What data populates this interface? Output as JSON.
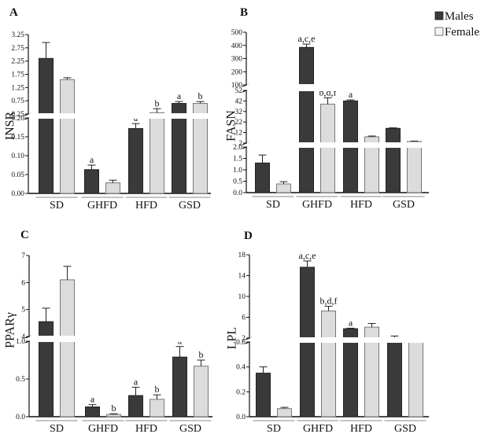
{
  "legend": {
    "items": [
      {
        "label": "Males",
        "color": "#3a3a3a"
      },
      {
        "label": "Females",
        "color": "#dcdcdc"
      }
    ],
    "placement": "top-right"
  },
  "colors": {
    "males": "#3a3a3a",
    "females": "#dcdcdc",
    "axis": "#111111",
    "group_line": "#888888"
  },
  "chart_data": [
    {
      "panel": "A",
      "type": "bar",
      "ylabel": "INSR",
      "categories": [
        "SD",
        "GHFD",
        "HFD",
        "GSD"
      ],
      "axis_segments": [
        {
          "range": [
            0,
            0.2
          ],
          "ticks": [
            "0.00",
            "0.05",
            "0.10",
            "0.15",
            "0.20"
          ]
        },
        {
          "range": [
            0.25,
            3.25
          ],
          "ticks": [
            "0.25",
            "0.75",
            "1.25",
            "1.75",
            "2.25",
            "2.75",
            "3.25"
          ]
        }
      ],
      "series": [
        {
          "name": "Males",
          "values": [
            2.35,
            0.063,
            0.172,
            0.65
          ],
          "errors": [
            2.95,
            0.075,
            0.185,
            0.72
          ],
          "labels": [
            "",
            "a",
            "a",
            "a"
          ]
        },
        {
          "name": "Females",
          "values": [
            1.55,
            0.028,
            0.3,
            0.65
          ],
          "errors": [
            1.62,
            0.035,
            0.45,
            0.72
          ],
          "labels": [
            "",
            "",
            "b",
            "b"
          ]
        }
      ]
    },
    {
      "panel": "B",
      "type": "bar",
      "ylabel": "FASN",
      "categories": [
        "SD",
        "GHFD",
        "HFD",
        "GSD"
      ],
      "axis_segments": [
        {
          "range": [
            0,
            2.0
          ],
          "ticks": [
            "0.0",
            "0.5",
            "1.0",
            "1.5",
            "2.0"
          ]
        },
        {
          "range": [
            2,
            52
          ],
          "ticks": [
            "2",
            "12",
            "22",
            "32",
            "42",
            "52"
          ]
        },
        {
          "range": [
            100,
            500
          ],
          "ticks": [
            "100",
            "200",
            "300",
            "400",
            "500"
          ]
        }
      ],
      "series": [
        {
          "name": "Males",
          "values": [
            1.3,
            385,
            42,
            16
          ],
          "errors": [
            1.65,
            410,
            43,
            16.5
          ],
          "labels": [
            "",
            "a,c,e",
            "a",
            ""
          ]
        },
        {
          "name": "Females",
          "values": [
            0.38,
            39,
            8,
            3.5
          ],
          "errors": [
            0.48,
            45,
            8.7,
            3.9
          ],
          "labels": [
            "",
            "b,d,f",
            "",
            ""
          ]
        }
      ]
    },
    {
      "panel": "C",
      "type": "bar",
      "ylabel": "PPARγ",
      "categories": [
        "SD",
        "GHFD",
        "HFD",
        "GSD"
      ],
      "axis_segments": [
        {
          "range": [
            0,
            1.0
          ],
          "ticks": [
            "0.0",
            "0.5",
            "1.0"
          ]
        },
        {
          "range": [
            4,
            7
          ],
          "ticks": [
            "4",
            "5",
            "6",
            "7"
          ]
        }
      ],
      "series": [
        {
          "name": "Males",
          "values": [
            4.55,
            0.13,
            0.28,
            0.79
          ],
          "errors": [
            5.05,
            0.16,
            0.39,
            0.93
          ],
          "labels": [
            "",
            "a",
            "a",
            "a"
          ]
        },
        {
          "name": "Females",
          "values": [
            6.1,
            0.03,
            0.23,
            0.67
          ],
          "errors": [
            6.6,
            0.04,
            0.29,
            0.75
          ],
          "labels": [
            "",
            "b",
            "b",
            "b"
          ]
        }
      ]
    },
    {
      "panel": "D",
      "type": "bar",
      "ylabel": "LPL",
      "categories": [
        "SD",
        "GHFD",
        "HFD",
        "GSD"
      ],
      "axis_segments": [
        {
          "range": [
            0,
            0.6
          ],
          "ticks": [
            "0.0",
            "0.2",
            "0.4",
            "0.6"
          ]
        },
        {
          "range": [
            2,
            18
          ],
          "ticks": [
            "2",
            "6",
            "10",
            "14",
            "18"
          ]
        }
      ],
      "series": [
        {
          "name": "Males",
          "values": [
            0.35,
            15.6,
            3.8,
            2.0
          ],
          "errors": [
            0.4,
            16.8,
            3.9,
            2.4
          ],
          "labels": [
            "",
            "a,c,e",
            "a",
            ""
          ]
        },
        {
          "name": "Females",
          "values": [
            0.065,
            7.2,
            4.1,
            1.5
          ],
          "errors": [
            0.075,
            8.1,
            4.8,
            1.9
          ],
          "labels": [
            "",
            "b,d,f",
            "",
            ""
          ]
        }
      ]
    }
  ]
}
